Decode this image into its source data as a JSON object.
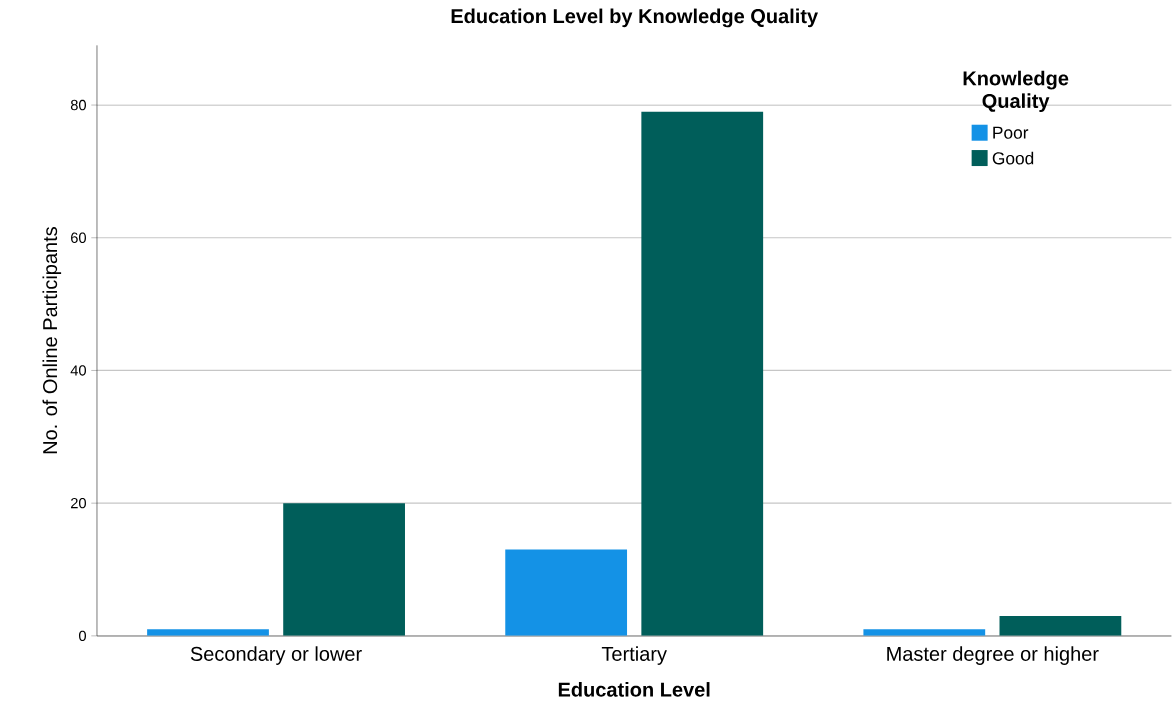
{
  "chart_data": {
    "type": "bar",
    "title": "Education Level by Knowledge Quality",
    "xlabel": "Education Level",
    "ylabel": "No. of Online Participants",
    "legend_title": "Knowledge Quality",
    "categories": [
      "Secondary or lower",
      "Tertiary",
      "Master degree or higher"
    ],
    "series": [
      {
        "name": "Poor",
        "color": "#1492e6",
        "values": [
          1,
          13,
          1
        ]
      },
      {
        "name": "Good",
        "color": "#005e5a",
        "values": [
          20,
          79,
          3
        ]
      }
    ],
    "ylim": [
      0,
      89
    ],
    "yticks": [
      0,
      20,
      40,
      60,
      80
    ],
    "grid": "y",
    "legend": "top right"
  }
}
